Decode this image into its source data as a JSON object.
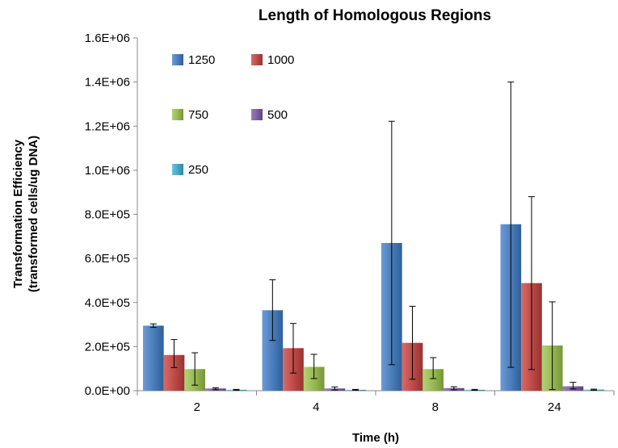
{
  "chart_data": {
    "type": "bar",
    "title": "Length of Homologous Regions",
    "xlabel": "Time (h)",
    "ylabel": [
      "Transformation Efficiency",
      "(transformed cells/ug DNA)"
    ],
    "categories": [
      "2",
      "4",
      "8",
      "24"
    ],
    "ylim": [
      0,
      1600000
    ],
    "yticks": [
      0,
      200000,
      400000,
      600000,
      800000,
      1000000,
      1200000,
      1400000,
      1600000
    ],
    "ytick_labels": [
      "0.0E+00",
      "2.0E+05",
      "4.0E+05",
      "6.0E+05",
      "8.0E+05",
      "1.0E+06",
      "1.2E+06",
      "1.4E+06",
      "1.6E+06"
    ],
    "grid": false,
    "legend_position": "top-left",
    "series": [
      {
        "name": "1250",
        "color": "#4a7ebb",
        "values": [
          295000,
          365000,
          670000,
          755000
        ],
        "err_low": [
          287000,
          228000,
          118000,
          106000
        ],
        "err_high": [
          303000,
          503000,
          1222000,
          1400000
        ]
      },
      {
        "name": "1000",
        "color": "#be4b48",
        "values": [
          162000,
          193000,
          217000,
          488000
        ],
        "err_low": [
          105000,
          80000,
          52000,
          96000
        ],
        "err_high": [
          232000,
          305000,
          383000,
          880000
        ]
      },
      {
        "name": "750",
        "color": "#98b954",
        "values": [
          98000,
          108000,
          98000,
          205000
        ],
        "err_low": [
          25000,
          55000,
          55000,
          5000
        ],
        "err_high": [
          172000,
          165000,
          150000,
          403000
        ]
      },
      {
        "name": "500",
        "color": "#7d60a0",
        "values": [
          10000,
          10000,
          12000,
          20000
        ],
        "err_low": [
          4000,
          3000,
          4000,
          8000
        ],
        "err_high": [
          13000,
          17000,
          18000,
          38000
        ]
      },
      {
        "name": "250",
        "color": "#46aac5",
        "values": [
          4000,
          4000,
          4000,
          5000
        ],
        "err_low": [
          2000,
          2000,
          2000,
          2000
        ],
        "err_high": [
          6000,
          6000,
          6000,
          7000
        ]
      }
    ]
  }
}
